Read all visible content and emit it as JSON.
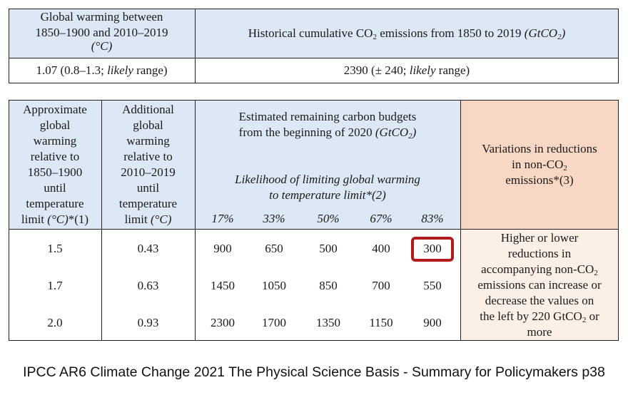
{
  "top_table": {
    "header_left_line1": "Global warming between",
    "header_left_line2": "1850–1900 and 2010–2019",
    "header_left_unit": "(°C)",
    "header_right_prefix": "Historical cumulative CO",
    "header_right_sub": "2",
    "header_right_mid": " emissions from 1850 to 2019 ",
    "header_right_unit": "(GtCO",
    "header_right_unit_sub": "2",
    "header_right_unit_end": ")",
    "value_left_prefix": "1.07 (0.8–1.3; ",
    "value_left_likely": "likely",
    "value_left_suffix": " range)",
    "value_right_prefix": "2390 (± 240; ",
    "value_right_likely": "likely",
    "value_right_suffix": " range)"
  },
  "main_table": {
    "col1_header_lines": [
      "Approximate",
      "global",
      "warming",
      "relative to",
      "1850–1900",
      "until",
      "temperature"
    ],
    "col1_header_last_prefix": "limit ",
    "col1_header_last_unit": "(°C)",
    "col1_header_last_suffix": "*(1)",
    "col2_header_lines": [
      "Additional",
      "global",
      "warming",
      "relative to",
      "2010–2019",
      "until",
      "temperature"
    ],
    "col2_header_last_prefix": "limit ",
    "col2_header_last_unit": "(°C)",
    "budget_header_line1": "Estimated remaining carbon budgets",
    "budget_header_line2_prefix": "from the beginning of 2020 ",
    "budget_header_unit": "(GtCO",
    "budget_header_unit_sub": "2",
    "budget_header_unit_end": ")",
    "likelihood_line1": "Likelihood of limiting global warming",
    "likelihood_line2": "to temperature limit*(2)",
    "likelihoods": [
      "17%",
      "33%",
      "50%",
      "67%",
      "83%"
    ],
    "variation_header_line1": "Variations in reductions",
    "variation_header_line2_prefix": "in non-CO",
    "variation_header_line2_sub": "2",
    "variation_header_line3": "emissions*(3)",
    "rows": [
      {
        "warming": "1.5",
        "additional": "0.43",
        "budgets": [
          "900",
          "650",
          "500",
          "400",
          "300"
        ]
      },
      {
        "warming": "1.7",
        "additional": "0.63",
        "budgets": [
          "1450",
          "1050",
          "850",
          "700",
          "550"
        ]
      },
      {
        "warming": "2.0",
        "additional": "0.93",
        "budgets": [
          "2300",
          "1700",
          "1350",
          "1150",
          "900"
        ]
      }
    ],
    "variation_note_lines": [
      "Higher or lower",
      "reductions in"
    ],
    "variation_note_line3_prefix": "accompanying non-CO",
    "variation_note_line3_sub": "2",
    "variation_note_lines_b": [
      "emissions can increase or",
      "decrease the values on"
    ],
    "variation_note_line6_prefix": "the left by 220 GtCO",
    "variation_note_line6_sub": "2",
    "variation_note_line6_suffix": " or",
    "variation_note_line7": "more"
  },
  "caption": "IPCC AR6 Climate Change 2021 The Physical Science Basis - Summary for Policymakers p38",
  "colors": {
    "header_blue": "#dce8f5",
    "peach": "#f8d8c5",
    "peach_light": "#fcefe6",
    "highlight_red": "#b01c1c"
  }
}
